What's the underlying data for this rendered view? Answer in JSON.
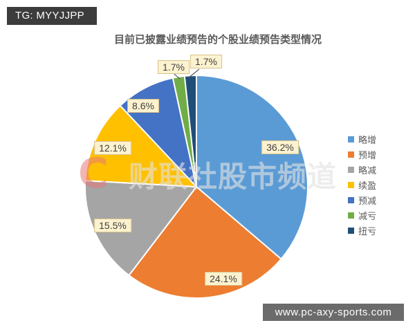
{
  "badge": {
    "label": "TG: MYYJJPP"
  },
  "footer": {
    "url": "www.pc-axy-sports.com"
  },
  "watermark": {
    "logo": "C",
    "text": "财联社股市频道"
  },
  "chart_data": {
    "type": "pie",
    "title": "目前已披露业绩预告的个股业绩预告类型情况",
    "legend_position": "right",
    "start_angle_deg": 0,
    "direction": "clockwise",
    "label_style": "percent-boxes",
    "slices": [
      {
        "label": "略增",
        "value": 36.2,
        "display": "36.2%",
        "color": "#5B9BD5"
      },
      {
        "label": "预增",
        "value": 24.1,
        "display": "24.1%",
        "color": "#ED7D31"
      },
      {
        "label": "略减",
        "value": 15.5,
        "display": "15.5%",
        "color": "#A5A5A5"
      },
      {
        "label": "续盈",
        "value": 12.1,
        "display": "12.1%",
        "color": "#FFC000"
      },
      {
        "label": "预减",
        "value": 8.6,
        "display": "8.6%",
        "color": "#4472C4"
      },
      {
        "label": "减亏",
        "value": 1.7,
        "display": "1.7%",
        "color": "#70AD47"
      },
      {
        "label": "扭亏",
        "value": 1.7,
        "display": "1.7%",
        "color": "#1F4E79"
      }
    ]
  }
}
